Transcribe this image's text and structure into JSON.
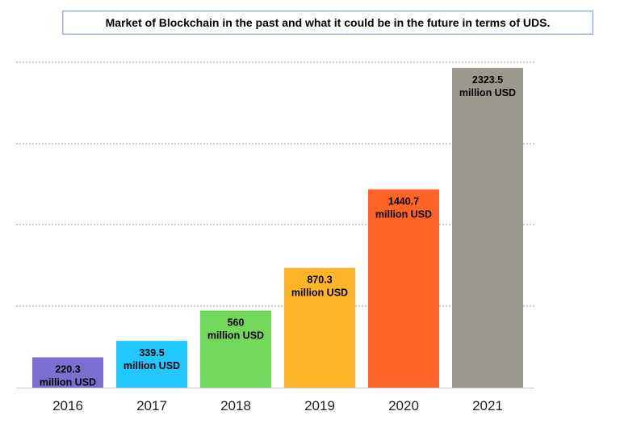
{
  "chart_data": {
    "type": "bar",
    "title": "Market of Blockchain in the past and what it could be in the future in terms of UDS.",
    "categories": [
      "2016",
      "2017",
      "2018",
      "2019",
      "2020",
      "2021"
    ],
    "values": [
      220.3,
      339.5,
      560,
      870.3,
      1440.7,
      2323.5
    ],
    "data_labels": [
      [
        "220.3",
        "million USD"
      ],
      [
        "339.5",
        "million USD"
      ],
      [
        "560",
        "million USD"
      ],
      [
        "870.3",
        "million USD"
      ],
      [
        "1440.7",
        "million USD"
      ],
      [
        "2323.5",
        "million USD"
      ]
    ],
    "colors": [
      "#7b6fd1",
      "#21c8ff",
      "#72d85c",
      "#ffb52a",
      "#ff6426",
      "#9b9890"
    ],
    "xlabel": "",
    "ylabel": "",
    "grid": true,
    "legend": "none"
  }
}
